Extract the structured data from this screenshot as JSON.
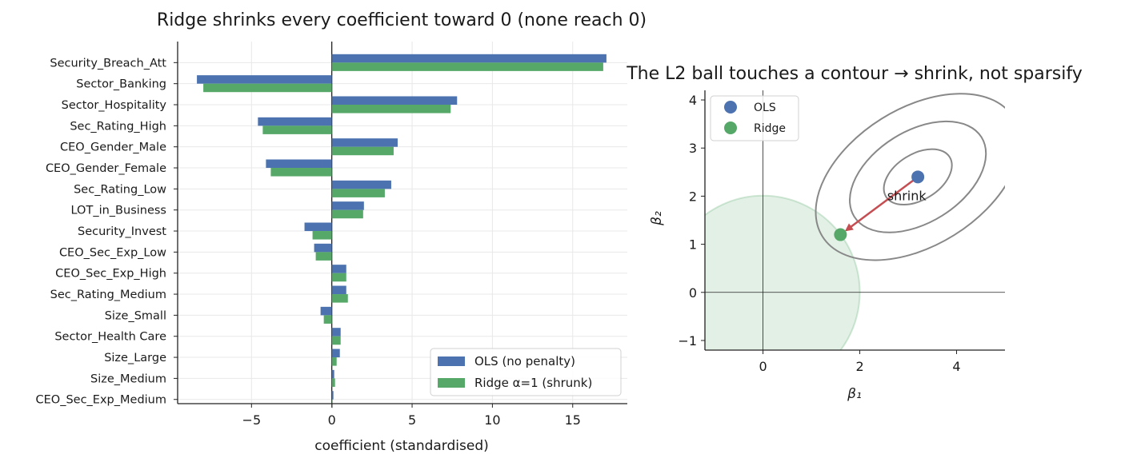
{
  "chart_data": [
    {
      "type": "bar",
      "orientation": "horizontal",
      "title": "Ridge shrinks every coefficient toward 0 (none reach 0)",
      "xlabel": "coefficient (standardised)",
      "ylabel": "",
      "xlim": [
        -9.6,
        18.4
      ],
      "xticks": [
        -5,
        0,
        5,
        10,
        15
      ],
      "xtick_labels": [
        "−5",
        "0",
        "5",
        "10",
        "15"
      ],
      "grid": true,
      "legend_position": "lower-right",
      "categories": [
        "Security_Breach_Att",
        "Sector_Banking",
        "Sector_Hospitality",
        "Sec_Rating_High",
        "CEO_Gender_Male",
        "CEO_Gender_Female",
        "Sec_Rating_Low",
        "LOT_in_Business",
        "Security_Invest",
        "CEO_Sec_Exp_Low",
        "CEO_Sec_Exp_High",
        "Sec_Rating_Medium",
        "Size_Small",
        "Sector_Health Care",
        "Size_Large",
        "Size_Medium",
        "CEO_Sec_Exp_Medium"
      ],
      "series": [
        {
          "name": "OLS (no penalty)",
          "color": "#4c72b0",
          "values": [
            17.1,
            -8.4,
            7.8,
            -4.6,
            4.1,
            -4.1,
            3.7,
            2.0,
            -1.7,
            -1.1,
            0.9,
            0.9,
            -0.7,
            0.55,
            0.5,
            0.15,
            0.1
          ]
        },
        {
          "name": "Ridge α=1 (shrunk)",
          "color": "#55a868",
          "values": [
            16.9,
            -8.0,
            7.4,
            -4.3,
            3.85,
            -3.8,
            3.3,
            1.95,
            -1.2,
            -1.0,
            0.9,
            1.0,
            -0.5,
            0.55,
            0.3,
            0.2,
            0.05
          ]
        }
      ]
    },
    {
      "type": "scatter",
      "title": "The L2 ball touches a contour → shrink, not sparsify",
      "xlabel": "β₁",
      "ylabel": "β₂",
      "xlim": [
        -1.2,
        5.0
      ],
      "ylim": [
        -1.2,
        4.2
      ],
      "xticks": [
        0,
        2,
        4
      ],
      "yticks": [
        -1,
        0,
        1,
        2,
        3,
        4
      ],
      "ytick_labels": [
        "−1",
        "0",
        "1",
        "2",
        "3",
        "4"
      ],
      "legend_position": "upper-left",
      "points": [
        {
          "name": "OLS",
          "x": 3.2,
          "y": 2.4,
          "color": "#4c72b0"
        },
        {
          "name": "Ridge",
          "x": 1.6,
          "y": 1.2,
          "color": "#55a868"
        }
      ],
      "l2_ball": {
        "center": [
          0,
          0
        ],
        "radius": 2.0,
        "color": "#55a868"
      },
      "contours": {
        "center": [
          3.2,
          2.4
        ],
        "levels": [
          0.5,
          1.0,
          1.5
        ],
        "color": "#888888"
      },
      "annotation": {
        "text": "shrink",
        "color": "#c44e52",
        "from": [
          3.2,
          2.4
        ],
        "to": [
          1.6,
          1.2
        ]
      }
    }
  ]
}
